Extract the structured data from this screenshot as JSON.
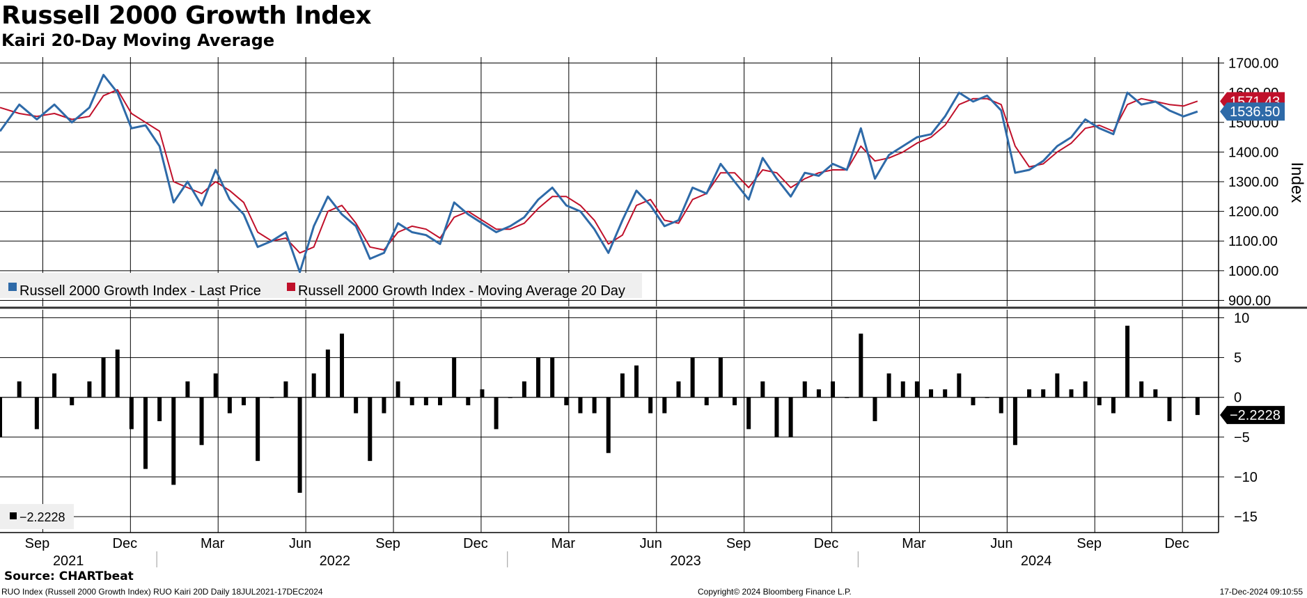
{
  "header": {
    "title": "Russell 2000 Growth Index",
    "subtitle": "Kairi 20-Day Moving Average"
  },
  "footer": {
    "source": "Source: CHARTbeat",
    "description": "RUO Index (Russell 2000 Growth Index) RUO Kairi 20D  Daily 18JUL2021-17DEC2024",
    "copyright": "Copyright© 2024 Bloomberg Finance L.P.",
    "timestamp": "17-Dec-2024 09:10:55"
  },
  "colors": {
    "price": "#2e6aa8",
    "ma": "#c0102a",
    "bars": "#000000",
    "grid": "#000000"
  },
  "chart_data": [
    {
      "type": "line",
      "title": "Russell 2000 Growth Index",
      "ylabel": "Index",
      "ylim": [
        880,
        1720
      ],
      "yticks": [
        900,
        1000,
        1100,
        1200,
        1300,
        1400,
        1500,
        1600,
        1700
      ],
      "ytick_labels": [
        "900.00",
        "1000.00",
        "1100.00",
        "1200.00",
        "1300.00",
        "1400.00",
        "1500.00",
        "1600.00",
        "1700.00"
      ],
      "legend": [
        {
          "name": "Russell 2000 Growth Index - Last Price",
          "color": "#2e6aa8"
        },
        {
          "name": "Russell 2000 Growth Index - Moving Average 20 Day",
          "color": "#c0102a"
        }
      ],
      "last_value_labels": [
        {
          "series": "Moving Average 20 Day",
          "text": "1571.43",
          "value": 1571.43
        },
        {
          "series": "Last Price",
          "text": "1536.50",
          "value": 1536.5
        }
      ],
      "series": [
        {
          "name": "Russell 2000 Growth Index - Last Price",
          "x": [
            2021.545,
            2021.6,
            2021.65,
            2021.7,
            2021.75,
            2021.8,
            2021.84,
            2021.88,
            2021.92,
            2021.96,
            2022.0,
            2022.04,
            2022.08,
            2022.12,
            2022.16,
            2022.2,
            2022.24,
            2022.28,
            2022.32,
            2022.36,
            2022.4,
            2022.44,
            2022.48,
            2022.52,
            2022.56,
            2022.6,
            2022.64,
            2022.68,
            2022.72,
            2022.76,
            2022.8,
            2022.84,
            2022.88,
            2022.92,
            2022.96,
            2023.0,
            2023.04,
            2023.08,
            2023.12,
            2023.16,
            2023.2,
            2023.24,
            2023.28,
            2023.32,
            2023.36,
            2023.4,
            2023.44,
            2023.48,
            2023.52,
            2023.56,
            2023.6,
            2023.64,
            2023.68,
            2023.72,
            2023.76,
            2023.8,
            2023.84,
            2023.88,
            2023.92,
            2023.96,
            2024.0,
            2024.04,
            2024.08,
            2024.12,
            2024.16,
            2024.2,
            2024.24,
            2024.28,
            2024.32,
            2024.36,
            2024.4,
            2024.44,
            2024.48,
            2024.52,
            2024.56,
            2024.6,
            2024.64,
            2024.68,
            2024.72,
            2024.76,
            2024.8,
            2024.84,
            2024.88,
            2024.92,
            2024.96
          ],
          "values": [
            1470,
            1560,
            1510,
            1560,
            1500,
            1550,
            1660,
            1600,
            1480,
            1490,
            1420,
            1230,
            1300,
            1220,
            1340,
            1240,
            1190,
            1080,
            1100,
            1130,
            995,
            1150,
            1250,
            1190,
            1150,
            1040,
            1060,
            1160,
            1130,
            1120,
            1090,
            1230,
            1190,
            1160,
            1130,
            1150,
            1180,
            1240,
            1280,
            1220,
            1200,
            1140,
            1060,
            1170,
            1270,
            1220,
            1150,
            1170,
            1280,
            1260,
            1360,
            1300,
            1240,
            1380,
            1310,
            1250,
            1330,
            1320,
            1360,
            1340,
            1480,
            1310,
            1390,
            1420,
            1450,
            1460,
            1520,
            1600,
            1570,
            1590,
            1540,
            1330,
            1340,
            1370,
            1420,
            1450,
            1510,
            1480,
            1460,
            1600,
            1560,
            1570,
            1540,
            1520,
            1536.5
          ]
        },
        {
          "name": "Russell 2000 Growth Index - Moving Average 20 Day",
          "x": [
            2021.545,
            2021.6,
            2021.65,
            2021.7,
            2021.75,
            2021.8,
            2021.84,
            2021.88,
            2021.92,
            2021.96,
            2022.0,
            2022.04,
            2022.08,
            2022.12,
            2022.16,
            2022.2,
            2022.24,
            2022.28,
            2022.32,
            2022.36,
            2022.4,
            2022.44,
            2022.48,
            2022.52,
            2022.56,
            2022.6,
            2022.64,
            2022.68,
            2022.72,
            2022.76,
            2022.8,
            2022.84,
            2022.88,
            2022.92,
            2022.96,
            2023.0,
            2023.04,
            2023.08,
            2023.12,
            2023.16,
            2023.2,
            2023.24,
            2023.28,
            2023.32,
            2023.36,
            2023.4,
            2023.44,
            2023.48,
            2023.52,
            2023.56,
            2023.6,
            2023.64,
            2023.68,
            2023.72,
            2023.76,
            2023.8,
            2023.84,
            2023.88,
            2023.92,
            2023.96,
            2024.0,
            2024.04,
            2024.08,
            2024.12,
            2024.16,
            2024.2,
            2024.24,
            2024.28,
            2024.32,
            2024.36,
            2024.4,
            2024.44,
            2024.48,
            2024.52,
            2024.56,
            2024.6,
            2024.64,
            2024.68,
            2024.72,
            2024.76,
            2024.8,
            2024.84,
            2024.88,
            2024.92,
            2024.96
          ],
          "values": [
            1550,
            1530,
            1520,
            1530,
            1510,
            1520,
            1590,
            1610,
            1530,
            1500,
            1470,
            1300,
            1280,
            1260,
            1300,
            1270,
            1230,
            1130,
            1100,
            1110,
            1060,
            1080,
            1200,
            1220,
            1160,
            1080,
            1070,
            1130,
            1150,
            1140,
            1110,
            1180,
            1200,
            1170,
            1140,
            1140,
            1160,
            1210,
            1250,
            1250,
            1220,
            1170,
            1090,
            1120,
            1220,
            1240,
            1170,
            1160,
            1240,
            1260,
            1330,
            1330,
            1280,
            1340,
            1330,
            1280,
            1310,
            1330,
            1340,
            1340,
            1420,
            1370,
            1380,
            1400,
            1430,
            1450,
            1490,
            1560,
            1580,
            1580,
            1560,
            1420,
            1350,
            1360,
            1400,
            1430,
            1480,
            1490,
            1470,
            1560,
            1580,
            1570,
            1560,
            1555,
            1571.43
          ]
        }
      ]
    },
    {
      "type": "bar",
      "title": "RUO Kairi 20D",
      "ylim": [
        -17,
        11
      ],
      "yticks": [
        -15,
        -10,
        -5,
        0,
        5,
        10
      ],
      "ytick_labels": [
        "-15",
        "-10",
        "-5",
        "0",
        "5",
        "10"
      ],
      "legend": [
        {
          "name": "-2.2228",
          "color": "#000000"
        }
      ],
      "last_value_labels": [
        {
          "series": "Kairi 20D",
          "text": "-2.2228",
          "value": -2.2228
        }
      ],
      "x": [
        2021.545,
        2021.6,
        2021.65,
        2021.7,
        2021.75,
        2021.8,
        2021.84,
        2021.88,
        2021.92,
        2021.96,
        2022.0,
        2022.04,
        2022.08,
        2022.12,
        2022.16,
        2022.2,
        2022.24,
        2022.28,
        2022.32,
        2022.36,
        2022.4,
        2022.44,
        2022.48,
        2022.52,
        2022.56,
        2022.6,
        2022.64,
        2022.68,
        2022.72,
        2022.76,
        2022.8,
        2022.84,
        2022.88,
        2022.92,
        2022.96,
        2023.0,
        2023.04,
        2023.08,
        2023.12,
        2023.16,
        2023.2,
        2023.24,
        2023.28,
        2023.32,
        2023.36,
        2023.4,
        2023.44,
        2023.48,
        2023.52,
        2023.56,
        2023.6,
        2023.64,
        2023.68,
        2023.72,
        2023.76,
        2023.8,
        2023.84,
        2023.88,
        2023.92,
        2023.96,
        2024.0,
        2024.04,
        2024.08,
        2024.12,
        2024.16,
        2024.2,
        2024.24,
        2024.28,
        2024.32,
        2024.36,
        2024.4,
        2024.44,
        2024.48,
        2024.52,
        2024.56,
        2024.6,
        2024.64,
        2024.68,
        2024.72,
        2024.76,
        2024.8,
        2024.84,
        2024.88,
        2024.92,
        2024.96
      ],
      "values": [
        -5,
        2,
        -4,
        3,
        -1,
        2,
        5,
        6,
        -4,
        -9,
        -3,
        -11,
        2,
        -6,
        3,
        -2,
        -1,
        -8,
        0,
        2,
        -12,
        3,
        6,
        8,
        -2,
        -8,
        -2,
        2,
        -1,
        -1,
        -1,
        5,
        -1,
        1,
        -4,
        0,
        2,
        5,
        5,
        -1,
        -2,
        -2,
        -7,
        3,
        4,
        -2,
        -2,
        2,
        5,
        -1,
        5,
        -1,
        -4,
        2,
        -5,
        -5,
        2,
        1,
        2,
        0,
        8,
        -3,
        3,
        2,
        2,
        1,
        1,
        3,
        -1,
        0,
        -2,
        -6,
        1,
        1,
        3,
        1,
        2,
        -1,
        -2,
        9,
        2,
        1,
        -3,
        0,
        -2.2228
      ]
    }
  ],
  "x_axis": {
    "months": [
      {
        "label": "Sep",
        "x": 2021.667
      },
      {
        "label": "Dec",
        "x": 2021.917
      },
      {
        "label": "Mar",
        "x": 2022.167
      },
      {
        "label": "Jun",
        "x": 2022.417
      },
      {
        "label": "Sep",
        "x": 2022.667
      },
      {
        "label": "Dec",
        "x": 2022.917
      },
      {
        "label": "Mar",
        "x": 2023.167
      },
      {
        "label": "Jun",
        "x": 2023.417
      },
      {
        "label": "Sep",
        "x": 2023.667
      },
      {
        "label": "Dec",
        "x": 2023.917
      },
      {
        "label": "Mar",
        "x": 2024.167
      },
      {
        "label": "Jun",
        "x": 2024.417
      },
      {
        "label": "Sep",
        "x": 2024.667
      },
      {
        "label": "Dec",
        "x": 2024.917
      }
    ],
    "years": [
      {
        "label": "2021",
        "x": 2021.74
      },
      {
        "label": "2022",
        "x": 2022.5
      },
      {
        "label": "2023",
        "x": 2023.5
      },
      {
        "label": "2024",
        "x": 2024.5
      }
    ],
    "year_boundaries": [
      2022.0,
      2023.0,
      2024.0
    ],
    "xlim": [
      2021.545,
      2025.02
    ]
  }
}
